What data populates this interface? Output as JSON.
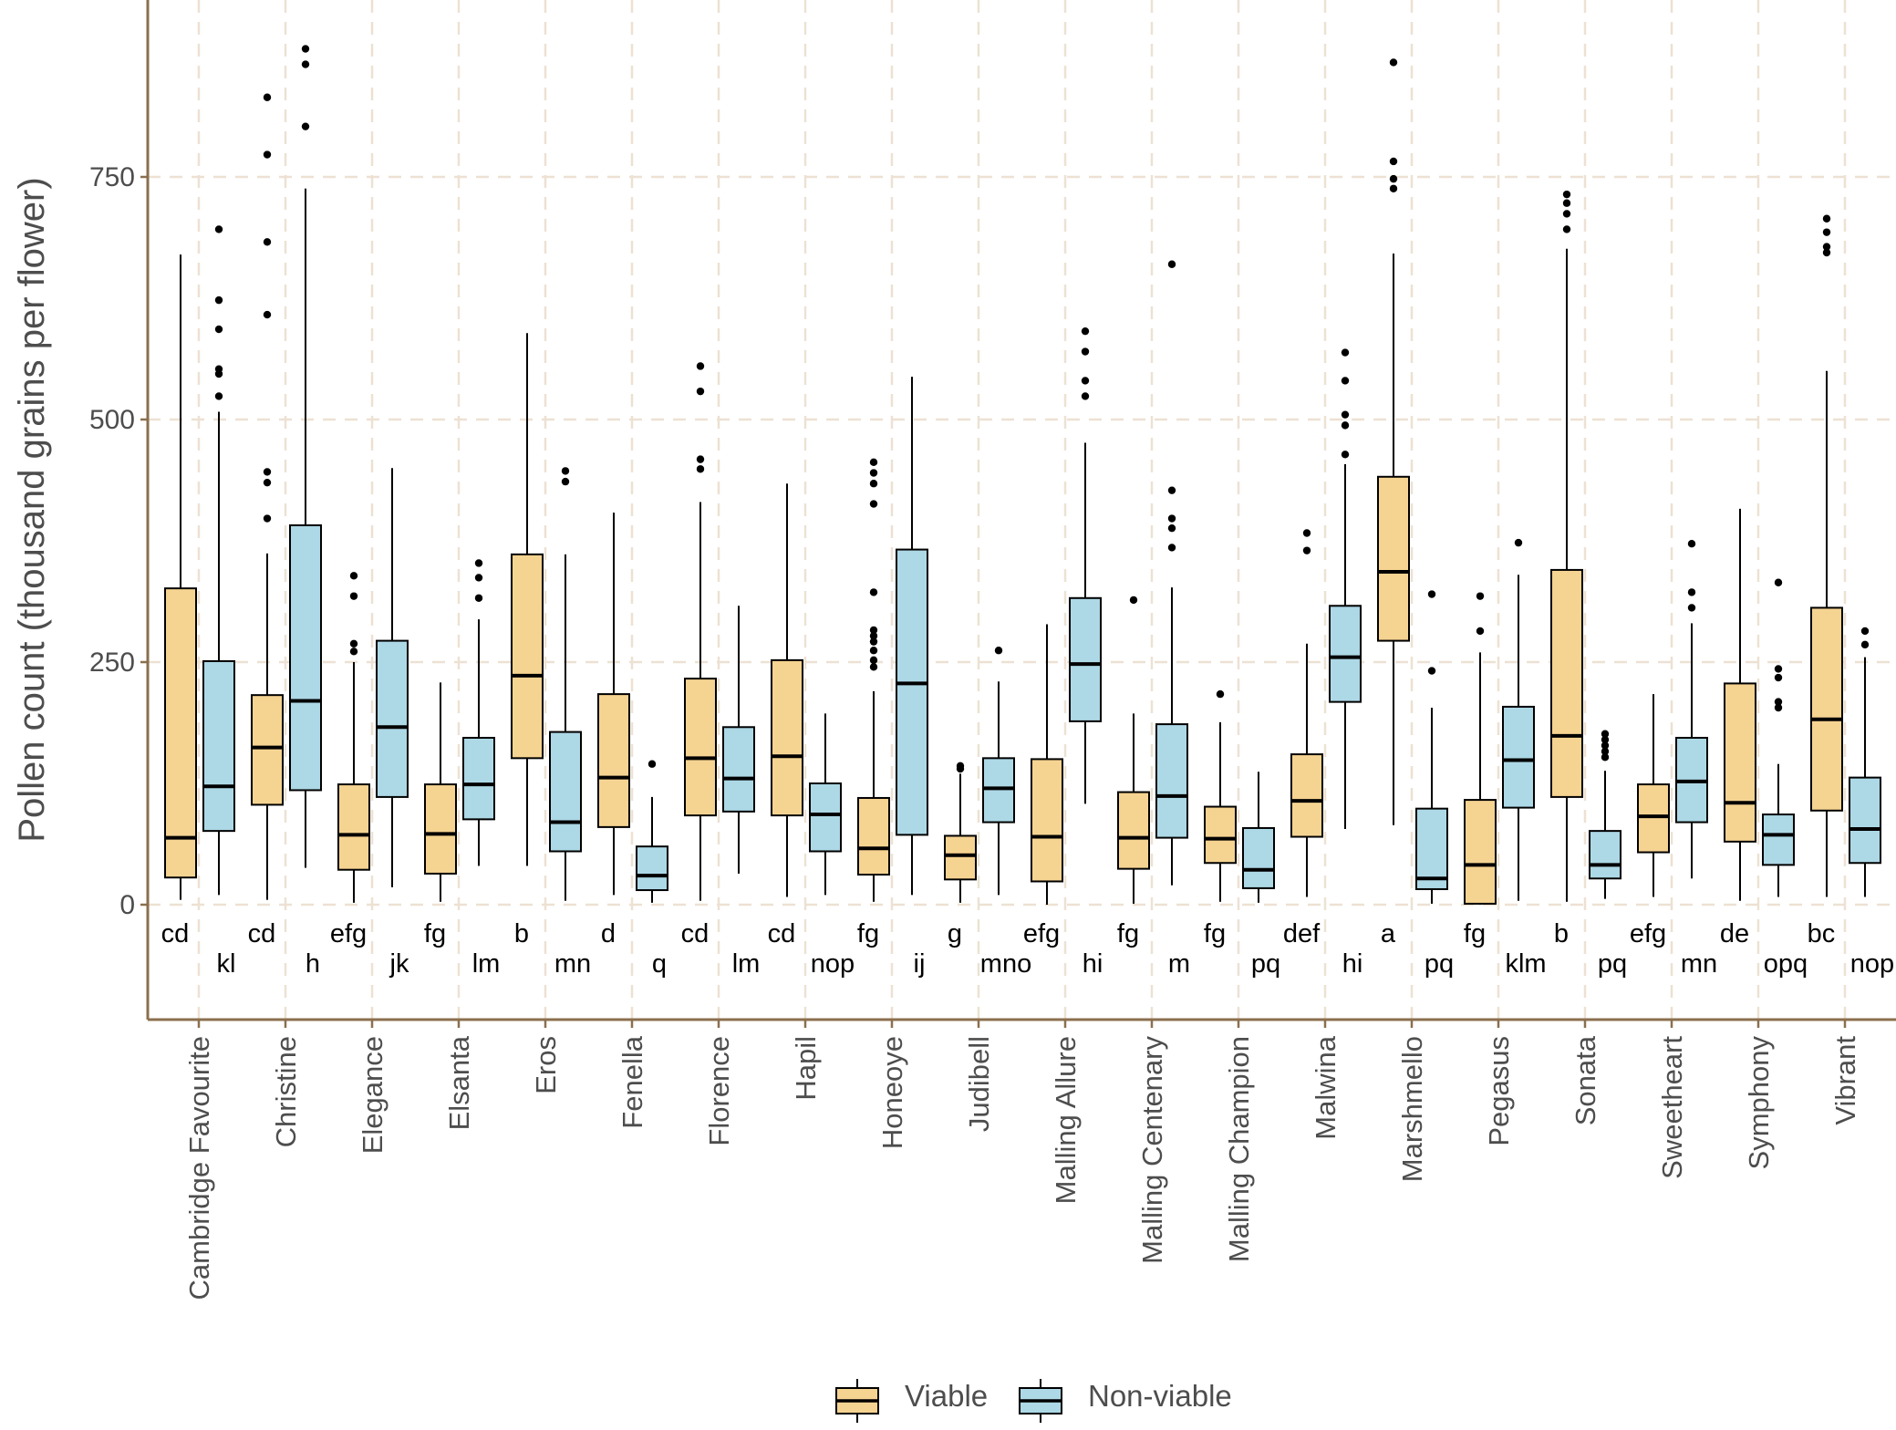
{
  "chart_data": {
    "type": "boxplot",
    "title": "",
    "xlabel": "",
    "ylabel": "Pollen count (thousand grains per flower)",
    "ylim": [
      -120,
      930
    ],
    "yticks": [
      0,
      250,
      500,
      750
    ],
    "grid": true,
    "legend_position": "bottom",
    "colors": {
      "viable": "#F5D391",
      "non_viable": "#ADD8E6",
      "grid": "#EDE1D3",
      "axis": "#8B6F4E"
    },
    "series_names": [
      "Viable",
      "Non-viable"
    ],
    "categories": [
      "Cambridge Favourite",
      "Christine",
      "Elegance",
      "Elsanta",
      "Eros",
      "Fenella",
      "Florence",
      "Hapil",
      "Honeoye",
      "Judibell",
      "Malling Allure",
      "Malling Centenary",
      "Malling Champion",
      "Malwina",
      "Marshmello",
      "Pegasus",
      "Sonata",
      "Sweetheart",
      "Symphony",
      "Vibrant"
    ],
    "boxes": [
      {
        "cat": "Cambridge Favourite",
        "viable": {
          "min": 5,
          "q1": 28,
          "median": 69,
          "q3": 326,
          "max": 670,
          "outliers": [],
          "letter": "cd"
        },
        "nonviable": {
          "min": 10,
          "q1": 76,
          "median": 122,
          "q3": 251,
          "max": 508,
          "outliers": [
            524,
            547,
            552,
            593,
            623,
            696
          ],
          "letter": "kl"
        }
      },
      {
        "cat": "Christine",
        "viable": {
          "min": 5,
          "q1": 103,
          "median": 162,
          "q3": 216,
          "max": 362,
          "outliers": [
            398,
            435,
            446,
            608,
            683,
            773,
            832
          ],
          "letter": "cd"
        },
        "nonviable": {
          "min": 38,
          "q1": 118,
          "median": 210,
          "q3": 391,
          "max": 738,
          "outliers": [
            802,
            866,
            882
          ],
          "letter": "h"
        }
      },
      {
        "cat": "Elegance",
        "viable": {
          "min": 2,
          "q1": 36,
          "median": 72,
          "q3": 124,
          "max": 250,
          "outliers": [
            261,
            269,
            318,
            339
          ],
          "letter": "efg"
        },
        "nonviable": {
          "min": 18,
          "q1": 111,
          "median": 183,
          "q3": 272,
          "max": 450,
          "outliers": [],
          "letter": "jk"
        }
      },
      {
        "cat": "Elsanta",
        "viable": {
          "min": 3,
          "q1": 32,
          "median": 73,
          "q3": 124,
          "max": 229,
          "outliers": [],
          "letter": "fg"
        },
        "nonviable": {
          "min": 40,
          "q1": 88,
          "median": 124,
          "q3": 172,
          "max": 294,
          "outliers": [
            316,
            337,
            352
          ],
          "letter": "lm"
        }
      },
      {
        "cat": "Eros",
        "viable": {
          "min": 40,
          "q1": 151,
          "median": 236,
          "q3": 361,
          "max": 589,
          "outliers": [],
          "letter": "b"
        },
        "nonviable": {
          "min": 4,
          "q1": 55,
          "median": 85,
          "q3": 178,
          "max": 361,
          "outliers": [
            436,
            447
          ],
          "letter": "mn"
        }
      },
      {
        "cat": "Fenella",
        "viable": {
          "min": 10,
          "q1": 80,
          "median": 131,
          "q3": 217,
          "max": 404,
          "outliers": [],
          "letter": "d"
        },
        "nonviable": {
          "min": 2,
          "q1": 15,
          "median": 30,
          "q3": 60,
          "max": 111,
          "outliers": [
            145
          ],
          "letter": "q"
        }
      },
      {
        "cat": "Florence",
        "viable": {
          "min": 4,
          "q1": 92,
          "median": 151,
          "q3": 233,
          "max": 415,
          "outliers": [
            449,
            459,
            529,
            555
          ],
          "letter": "cd"
        },
        "nonviable": {
          "min": 32,
          "q1": 96,
          "median": 130,
          "q3": 183,
          "max": 308,
          "outliers": [],
          "letter": "lm"
        }
      },
      {
        "cat": "Hapil",
        "viable": {
          "min": 8,
          "q1": 92,
          "median": 153,
          "q3": 252,
          "max": 434,
          "outliers": [],
          "letter": "cd"
        },
        "nonviable": {
          "min": 10,
          "q1": 55,
          "median": 93,
          "q3": 125,
          "max": 197,
          "outliers": [],
          "letter": "nop"
        }
      },
      {
        "cat": "Honeoye",
        "viable": {
          "min": 3,
          "q1": 31,
          "median": 58,
          "q3": 110,
          "max": 220,
          "outliers": [
            245,
            252,
            262,
            271,
            277,
            283,
            322,
            413,
            434,
            445,
            456
          ],
          "letter": "fg"
        },
        "nonviable": {
          "min": 10,
          "q1": 72,
          "median": 228,
          "q3": 366,
          "max": 544,
          "outliers": [],
          "letter": "ij"
        }
      },
      {
        "cat": "Judibell",
        "viable": {
          "min": 2,
          "q1": 26,
          "median": 51,
          "q3": 71,
          "max": 135,
          "outliers": [
            140,
            143
          ],
          "letter": "g"
        },
        "nonviable": {
          "min": 10,
          "q1": 85,
          "median": 120,
          "q3": 151,
          "max": 230,
          "outliers": [
            262
          ],
          "letter": "mno"
        }
      },
      {
        "cat": "Malling Allure",
        "viable": {
          "min": 0,
          "q1": 24,
          "median": 70,
          "q3": 150,
          "max": 289,
          "outliers": [],
          "letter": "efg"
        },
        "nonviable": {
          "min": 104,
          "q1": 189,
          "median": 248,
          "q3": 316,
          "max": 476,
          "outliers": [
            524,
            540,
            570,
            591
          ],
          "letter": "hi"
        }
      },
      {
        "cat": "Malling Centenary",
        "viable": {
          "min": 1,
          "q1": 37,
          "median": 69,
          "q3": 116,
          "max": 197,
          "outliers": [
            314
          ],
          "letter": "fg"
        },
        "nonviable": {
          "min": 20,
          "q1": 69,
          "median": 112,
          "q3": 186,
          "max": 327,
          "outliers": [
            368,
            388,
            398,
            427,
            660
          ],
          "letter": "m"
        }
      },
      {
        "cat": "Malling Champion",
        "viable": {
          "min": 3,
          "q1": 43,
          "median": 68,
          "q3": 101,
          "max": 188,
          "outliers": [
            217
          ],
          "letter": "fg"
        },
        "nonviable": {
          "min": 2,
          "q1": 17,
          "median": 36,
          "q3": 79,
          "max": 137,
          "outliers": [],
          "letter": "pq"
        }
      },
      {
        "cat": "Malwina",
        "viable": {
          "min": 8,
          "q1": 70,
          "median": 107,
          "q3": 155,
          "max": 269,
          "outliers": [
            365,
            383
          ],
          "letter": "def"
        },
        "nonviable": {
          "min": 78,
          "q1": 209,
          "median": 255,
          "q3": 308,
          "max": 454,
          "outliers": [
            464,
            494,
            505,
            540,
            569
          ],
          "letter": "hi"
        }
      },
      {
        "cat": "Marshmello",
        "viable": {
          "min": 82,
          "q1": 272,
          "median": 343,
          "q3": 441,
          "max": 671,
          "outliers": [
            738,
            748,
            766,
            868
          ],
          "letter": "a"
        },
        "nonviable": {
          "min": 1,
          "q1": 16,
          "median": 27,
          "q3": 99,
          "max": 203,
          "outliers": [
            241,
            320
          ],
          "letter": "pq"
        }
      },
      {
        "cat": "Pegasus",
        "viable": {
          "min": 0,
          "q1": 1,
          "median": 41,
          "q3": 108,
          "max": 260,
          "outliers": [
            282,
            318
          ],
          "letter": "fg"
        },
        "nonviable": {
          "min": 4,
          "q1": 100,
          "median": 149,
          "q3": 204,
          "max": 340,
          "outliers": [
            373
          ],
          "letter": "klm"
        }
      },
      {
        "cat": "Sonata",
        "viable": {
          "min": 3,
          "q1": 111,
          "median": 174,
          "q3": 345,
          "max": 676,
          "outliers": [
            696,
            712,
            723,
            732
          ],
          "letter": "b"
        },
        "nonviable": {
          "min": 6,
          "q1": 27,
          "median": 41,
          "q3": 76,
          "max": 138,
          "outliers": [
            152,
            158,
            164,
            170,
            176
          ],
          "letter": "pq"
        }
      },
      {
        "cat": "Sweetheart",
        "viable": {
          "min": 8,
          "q1": 54,
          "median": 91,
          "q3": 124,
          "max": 217,
          "outliers": [],
          "letter": "efg"
        },
        "nonviable": {
          "min": 27,
          "q1": 85,
          "median": 127,
          "q3": 172,
          "max": 290,
          "outliers": [
            306,
            322,
            372
          ],
          "letter": "mn"
        }
      },
      {
        "cat": "Symphony",
        "viable": {
          "min": 4,
          "q1": 65,
          "median": 105,
          "q3": 228,
          "max": 408,
          "outliers": [],
          "letter": "de"
        },
        "nonviable": {
          "min": 8,
          "q1": 41,
          "median": 72,
          "q3": 93,
          "max": 145,
          "outliers": [
            203,
            209,
            234,
            243,
            332
          ],
          "letter": "opq"
        }
      },
      {
        "cat": "Vibrant",
        "viable": {
          "min": 8,
          "q1": 97,
          "median": 191,
          "q3": 306,
          "max": 550,
          "outliers": [
            672,
            678,
            693,
            707
          ],
          "letter": "bc"
        },
        "nonviable": {
          "min": 8,
          "q1": 43,
          "median": 78,
          "q3": 131,
          "max": 255,
          "outliers": [
            268,
            282
          ],
          "letter": "nop"
        }
      }
    ]
  }
}
